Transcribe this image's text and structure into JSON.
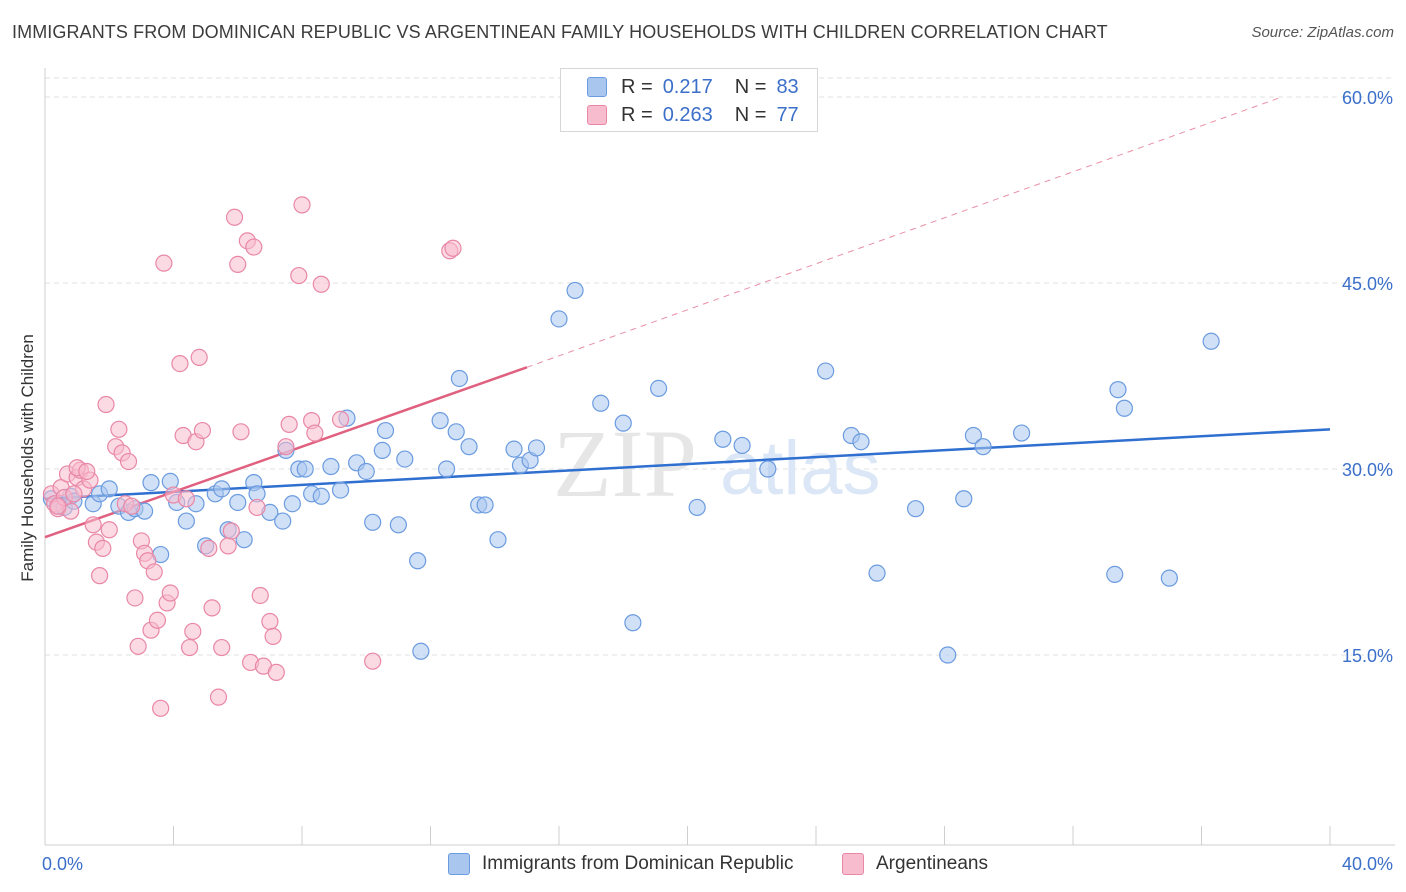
{
  "title": "IMMIGRANTS FROM DOMINICAN REPUBLIC VS ARGENTINEAN FAMILY HOUSEHOLDS WITH CHILDREN CORRELATION CHART",
  "source": "Source: ZipAtlas.com",
  "watermark": {
    "zip": "ZIP",
    "atlas": "atlas"
  },
  "legend": {
    "rows": [
      {
        "r_label": "R =",
        "r_value": "0.217",
        "n_label": "N =",
        "n_value": "83",
        "color": "#a9c6ef",
        "border": "#6b9be0"
      },
      {
        "r_label": "R =",
        "r_value": "0.263",
        "n_label": "N =",
        "n_value": "77",
        "color": "#f7bccd",
        "border": "#e987a6"
      }
    ]
  },
  "bottom_legend": [
    "Immigrants from Dominican Republic",
    "Argentineans"
  ],
  "chart_data": {
    "type": "scatter",
    "xlabel": "",
    "ylabel": "Family Households with Children",
    "xlim": [
      0,
      40
    ],
    "ylim": [
      0,
      60
    ],
    "x_tick_labels": [
      "0.0%",
      "40.0%"
    ],
    "y_ticks": [
      15,
      30,
      45,
      60
    ],
    "y_tick_labels": [
      "15.0%",
      "30.0%",
      "45.0%",
      "60.0%"
    ],
    "grid": true,
    "series": [
      {
        "name": "Immigrants from Dominican Republic",
        "color": "#6b9be0",
        "fill": "#a9c6ef",
        "trend": {
          "x": [
            0,
            40
          ],
          "y": [
            27.6,
            33.2
          ],
          "style": "solid",
          "color": "#2f6fcf"
        },
        "points": [
          [
            0.2,
            27.6
          ],
          [
            0.4,
            27.0
          ],
          [
            0.6,
            26.9
          ],
          [
            0.8,
            27.8
          ],
          [
            1.5,
            27.2
          ],
          [
            1.7,
            28.0
          ],
          [
            2.0,
            28.4
          ],
          [
            2.3,
            27.0
          ],
          [
            2.6,
            26.5
          ],
          [
            2.8,
            26.8
          ],
          [
            3.1,
            26.6
          ],
          [
            3.3,
            28.9
          ],
          [
            3.6,
            23.1
          ],
          [
            3.9,
            29.0
          ],
          [
            4.1,
            27.3
          ],
          [
            4.4,
            25.8
          ],
          [
            4.7,
            27.2
          ],
          [
            5.0,
            23.8
          ],
          [
            5.3,
            28.0
          ],
          [
            5.5,
            28.4
          ],
          [
            5.7,
            25.1
          ],
          [
            6.0,
            27.3
          ],
          [
            6.2,
            24.3
          ],
          [
            6.5,
            28.9
          ],
          [
            6.6,
            28.0
          ],
          [
            7.0,
            26.5
          ],
          [
            7.4,
            25.8
          ],
          [
            7.5,
            31.5
          ],
          [
            7.7,
            27.2
          ],
          [
            7.9,
            30.0
          ],
          [
            8.1,
            30.0
          ],
          [
            8.3,
            28.0
          ],
          [
            8.6,
            27.8
          ],
          [
            8.9,
            30.2
          ],
          [
            9.2,
            28.3
          ],
          [
            9.4,
            34.1
          ],
          [
            9.7,
            30.5
          ],
          [
            10.0,
            29.8
          ],
          [
            10.2,
            25.7
          ],
          [
            10.5,
            31.5
          ],
          [
            10.6,
            33.1
          ],
          [
            11.0,
            25.5
          ],
          [
            11.2,
            30.8
          ],
          [
            11.6,
            22.6
          ],
          [
            11.7,
            15.3
          ],
          [
            12.3,
            33.9
          ],
          [
            12.5,
            30.0
          ],
          [
            12.8,
            33.0
          ],
          [
            12.9,
            37.3
          ],
          [
            13.2,
            31.8
          ],
          [
            13.5,
            27.1
          ],
          [
            13.7,
            27.1
          ],
          [
            14.1,
            24.3
          ],
          [
            14.6,
            31.6
          ],
          [
            14.8,
            30.3
          ],
          [
            15.1,
            30.7
          ],
          [
            15.3,
            31.7
          ],
          [
            16.0,
            42.1
          ],
          [
            16.5,
            44.4
          ],
          [
            17.3,
            35.3
          ],
          [
            18.0,
            33.7
          ],
          [
            18.3,
            17.6
          ],
          [
            19.1,
            36.5
          ],
          [
            20.3,
            26.9
          ],
          [
            21.1,
            32.4
          ],
          [
            21.7,
            31.9
          ],
          [
            22.5,
            30.0
          ],
          [
            24.3,
            37.9
          ],
          [
            25.1,
            32.7
          ],
          [
            25.4,
            32.2
          ],
          [
            25.9,
            21.6
          ],
          [
            27.1,
            26.8
          ],
          [
            28.1,
            15.0
          ],
          [
            28.6,
            27.6
          ],
          [
            28.9,
            32.7
          ],
          [
            29.2,
            31.8
          ],
          [
            30.4,
            32.9
          ],
          [
            33.3,
            21.5
          ],
          [
            33.4,
            36.4
          ],
          [
            33.6,
            34.9
          ],
          [
            35.0,
            21.2
          ],
          [
            36.3,
            40.3
          ],
          [
            0.9,
            27.4
          ]
        ]
      },
      {
        "name": "Argentineans",
        "color": "#e987a6",
        "fill": "#f7bccd",
        "trend": {
          "x": [
            0,
            15.0
          ],
          "y": [
            24.5,
            38.2
          ],
          "style": "solid",
          "color": "#e0607f",
          "dashed_x": [
            15.0,
            38.5
          ],
          "dashed_y": [
            38.2,
            60.0
          ]
        },
        "points": [
          [
            0.2,
            28.0
          ],
          [
            0.3,
            27.2
          ],
          [
            0.4,
            26.8
          ],
          [
            0.5,
            28.5
          ],
          [
            0.7,
            29.6
          ],
          [
            0.8,
            26.6
          ],
          [
            1.0,
            29.3
          ],
          [
            1.1,
            29.9
          ],
          [
            1.2,
            28.4
          ],
          [
            1.4,
            29.1
          ],
          [
            1.5,
            25.5
          ],
          [
            1.6,
            24.1
          ],
          [
            1.7,
            21.4
          ],
          [
            1.8,
            23.6
          ],
          [
            1.9,
            35.2
          ],
          [
            2.0,
            25.1
          ],
          [
            2.2,
            31.8
          ],
          [
            2.3,
            33.2
          ],
          [
            2.4,
            31.3
          ],
          [
            2.5,
            27.2
          ],
          [
            2.6,
            30.6
          ],
          [
            2.8,
            19.6
          ],
          [
            2.9,
            15.7
          ],
          [
            3.0,
            24.2
          ],
          [
            3.1,
            23.2
          ],
          [
            3.2,
            22.6
          ],
          [
            3.3,
            17.0
          ],
          [
            3.4,
            21.7
          ],
          [
            3.5,
            17.8
          ],
          [
            3.6,
            10.7
          ],
          [
            3.7,
            46.6
          ],
          [
            3.8,
            19.2
          ],
          [
            3.9,
            20.0
          ],
          [
            4.0,
            27.9
          ],
          [
            4.2,
            38.5
          ],
          [
            4.3,
            32.7
          ],
          [
            4.4,
            27.6
          ],
          [
            4.5,
            15.6
          ],
          [
            4.6,
            16.9
          ],
          [
            4.7,
            32.2
          ],
          [
            4.8,
            39.0
          ],
          [
            4.9,
            33.1
          ],
          [
            5.1,
            23.6
          ],
          [
            5.2,
            18.8
          ],
          [
            5.4,
            11.6
          ],
          [
            5.5,
            15.6
          ],
          [
            5.7,
            23.8
          ],
          [
            5.8,
            25.0
          ],
          [
            5.9,
            50.3
          ],
          [
            6.0,
            46.5
          ],
          [
            6.1,
            33.0
          ],
          [
            6.3,
            48.4
          ],
          [
            6.4,
            14.4
          ],
          [
            6.5,
            47.9
          ],
          [
            6.6,
            26.9
          ],
          [
            6.7,
            19.8
          ],
          [
            6.8,
            14.1
          ],
          [
            7.0,
            17.7
          ],
          [
            7.1,
            16.5
          ],
          [
            7.2,
            13.6
          ],
          [
            7.5,
            31.8
          ],
          [
            7.6,
            33.6
          ],
          [
            7.9,
            45.6
          ],
          [
            8.0,
            51.3
          ],
          [
            8.3,
            33.9
          ],
          [
            8.4,
            32.9
          ],
          [
            8.6,
            44.9
          ],
          [
            9.2,
            34.0
          ],
          [
            10.2,
            14.5
          ],
          [
            12.6,
            47.6
          ],
          [
            12.7,
            47.8
          ],
          [
            0.6,
            27.7
          ],
          [
            1.0,
            30.1
          ],
          [
            1.3,
            29.8
          ],
          [
            0.9,
            28.0
          ],
          [
            2.7,
            27.0
          ],
          [
            0.4,
            27.0
          ]
        ]
      }
    ]
  }
}
